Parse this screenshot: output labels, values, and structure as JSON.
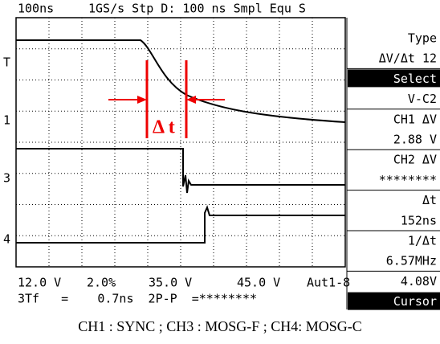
{
  "header": {
    "timebase": "100ns",
    "status": "1GS/s Stp D: 100 ns Smpl Equ S"
  },
  "markers": [
    "T",
    "1",
    "3",
    "4"
  ],
  "menu": [
    "Type",
    "ΔV/Δt 12",
    "Select",
    "V-C2",
    "CH1 ΔV",
    "2.88 V",
    "CH2 ΔV",
    "********",
    "Δt",
    "152ns",
    "1/Δt",
    "6.57MHz",
    "4.08V",
    "Cursor"
  ],
  "status": {
    "row1": [
      "12.0 V",
      "2.0%",
      "35.0 V",
      "45.0 V",
      "Aut1-8"
    ],
    "row2": "3Tf   =    0.7ns  2P-P  =********"
  },
  "annotation": "Δ t",
  "caption": "CH1 : SYNC ; CH3 : MOSG-F ; CH4: MOSG-C"
}
